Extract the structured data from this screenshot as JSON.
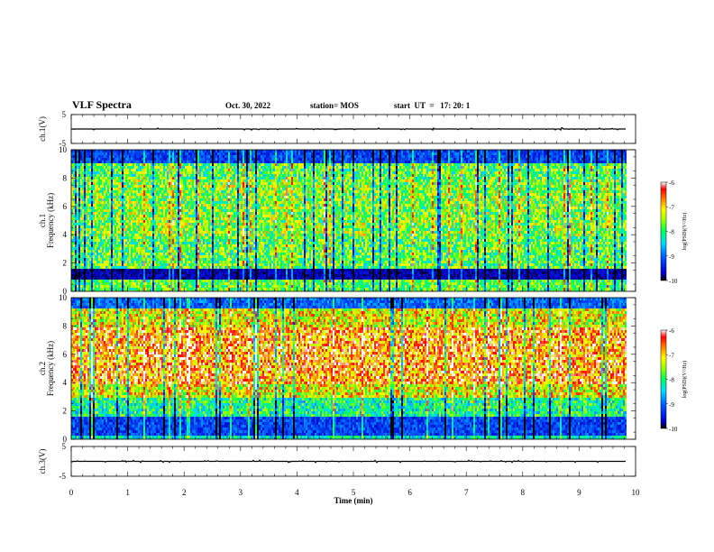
{
  "header": {
    "title": "VLF Spectra",
    "date": "Oct. 30, 2022",
    "station": "station= MOS",
    "start": "start  UT  =   17: 20: 1"
  },
  "chart_data": [
    {
      "type": "line",
      "panel": "ch1-waveform",
      "ylabel": "ch.1(V)",
      "ylim": [
        -5,
        5
      ],
      "yticks": [
        "5",
        "-5"
      ],
      "x": [
        0,
        9.83
      ],
      "values": [
        0,
        0
      ]
    },
    {
      "type": "heatmap",
      "panel": "ch1-spectrogram",
      "ylabel": "ch.1\nFrequency  (kHz)",
      "ylim": [
        0,
        10
      ],
      "yticks": [
        "0",
        "2",
        "4",
        "6",
        "8",
        "10"
      ],
      "xlim": [
        0,
        10
      ],
      "data_extent_min": 9.83,
      "colorbar": {
        "label": "log(PSD)(V²/Hz)",
        "range": [
          -10,
          -6
        ],
        "ticks": [
          "-6",
          "-7",
          "-8",
          "-9",
          "-10"
        ]
      }
    },
    {
      "type": "heatmap",
      "panel": "ch2-spectrogram",
      "ylabel": "ch.2\nFrequency  (kHz)",
      "ylim": [
        0,
        10
      ],
      "yticks": [
        "0",
        "2",
        "4",
        "6",
        "8",
        "10"
      ],
      "xlim": [
        0,
        10
      ],
      "data_extent_min": 9.83,
      "colorbar": {
        "label": "log(PSD)(V²/Hz)",
        "range": [
          -10,
          -6
        ],
        "ticks": [
          "-6",
          "-7",
          "-8",
          "-9",
          "-10"
        ]
      }
    },
    {
      "type": "line",
      "panel": "ch3-waveform",
      "ylabel": "ch.3(V)",
      "ylim": [
        -5,
        5
      ],
      "yticks": [
        "5",
        "-5"
      ],
      "x": [
        0,
        9.83
      ],
      "values": [
        0,
        0
      ]
    }
  ],
  "xaxis": {
    "label": "Time  (min)",
    "range": [
      0,
      10
    ],
    "ticks": [
      "0",
      "1",
      "2",
      "3",
      "4",
      "5",
      "6",
      "7",
      "8",
      "9",
      "10"
    ]
  }
}
